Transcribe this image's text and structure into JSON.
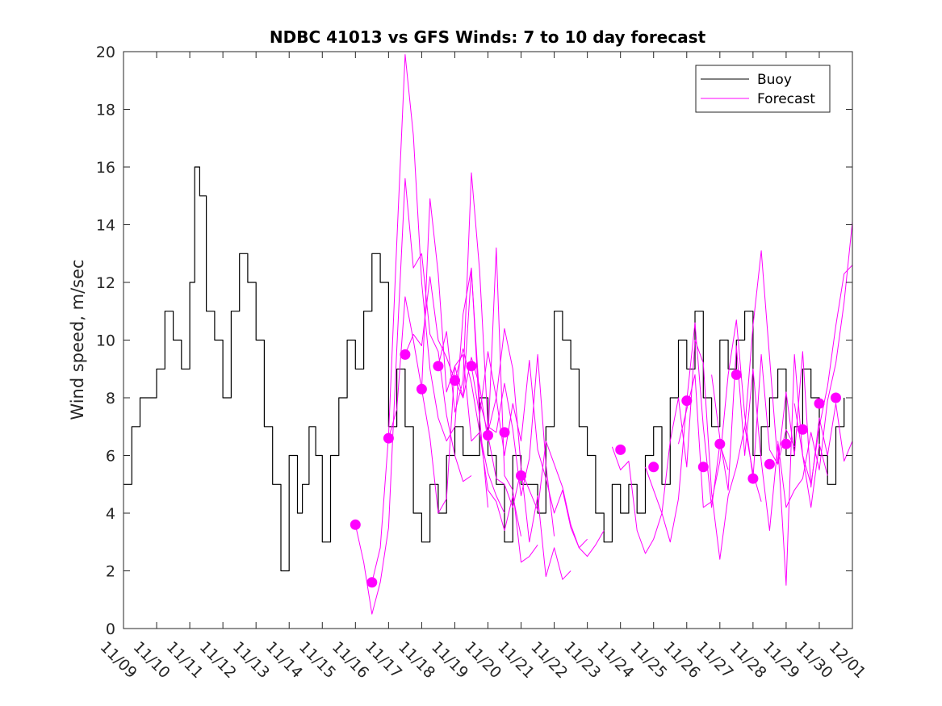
{
  "chart_data": {
    "type": "line",
    "title": "NDBC 41013 vs GFS Winds: 7 to 10 day forecast",
    "xlabel": "",
    "ylabel": "Wind speed, m/sec",
    "x_unit": "days since 11/09 00:00",
    "xlim": [
      0,
      22
    ],
    "ylim": [
      0,
      20
    ],
    "yticks": [
      0,
      2,
      4,
      6,
      8,
      10,
      12,
      14,
      16,
      18,
      20
    ],
    "xtick_labels": [
      "11/09",
      "11/10",
      "11/11",
      "11/12",
      "11/13",
      "11/14",
      "11/15",
      "11/16",
      "11/17",
      "11/18",
      "11/19",
      "11/20",
      "11/21",
      "11/22",
      "11/23",
      "11/24",
      "11/25",
      "11/26",
      "11/27",
      "11/28",
      "11/29",
      "11/30",
      "12/01"
    ],
    "legend": {
      "location": "top-right",
      "entries": [
        "Buoy",
        "Forecast"
      ]
    },
    "colors": {
      "buoy": "#000000",
      "forecast": "#ff00ff"
    },
    "series": [
      {
        "name": "Buoy",
        "x": [
          0.0,
          0.25,
          0.5,
          0.75,
          1.0,
          1.25,
          1.5,
          1.75,
          2.0,
          2.15,
          2.3,
          2.5,
          2.75,
          3.0,
          3.25,
          3.5,
          3.75,
          4.0,
          4.25,
          4.5,
          4.75,
          5.0,
          5.25,
          5.4,
          5.6,
          5.8,
          6.0,
          6.25,
          6.5,
          6.75,
          7.0,
          7.25,
          7.5,
          7.75,
          8.0,
          8.25,
          8.5,
          8.75,
          9.0,
          9.25,
          9.5,
          9.75,
          10.0,
          10.25,
          10.5,
          10.75,
          11.0,
          11.25,
          11.5,
          11.75,
          12.0,
          12.25,
          12.5,
          12.75,
          13.0,
          13.25,
          13.5,
          13.75,
          14.0,
          14.25,
          14.5,
          14.75,
          15.0,
          15.25,
          15.5,
          15.75,
          16.0,
          16.25,
          16.5,
          16.75,
          17.0,
          17.25,
          17.5,
          17.75,
          18.0,
          18.25,
          18.5,
          18.75,
          19.0,
          19.25,
          19.5,
          19.75,
          20.0,
          20.25,
          20.5,
          20.75,
          21.0,
          21.25,
          21.5,
          21.75
        ],
        "values": [
          5,
          7,
          8,
          8,
          9,
          11,
          10,
          9,
          12,
          16,
          15,
          11,
          10,
          8,
          11,
          13,
          12,
          10,
          7,
          5,
          2,
          6,
          4,
          5,
          7,
          6,
          3,
          6,
          8,
          10,
          9,
          11,
          13,
          12,
          7,
          9,
          7,
          4,
          3,
          5,
          4,
          6,
          7,
          6,
          6,
          8,
          6,
          5,
          3,
          6,
          5,
          5,
          4,
          7,
          11,
          10,
          9,
          7,
          6,
          4,
          3,
          5,
          4,
          5,
          4,
          6,
          7,
          5,
          8,
          10,
          9,
          11,
          8,
          7,
          10,
          9,
          10,
          11,
          6,
          7,
          8,
          9,
          6,
          7,
          9,
          8,
          6,
          5,
          7,
          8
        ]
      },
      {
        "name": "Forecast run 1",
        "x": [
          7.0,
          7.25,
          7.5,
          7.75,
          8.0,
          8.25,
          8.5,
          8.75,
          9.0,
          9.25,
          9.5,
          9.75,
          10.0,
          10.25,
          10.5
        ],
        "values": [
          3.6,
          2.3,
          0.5,
          1.6,
          3.5,
          9.7,
          15.6,
          12.5,
          13.0,
          10.2,
          9.6,
          7.4,
          6.0,
          5.1,
          5.3
        ]
      },
      {
        "name": "Forecast run 2",
        "x": [
          7.5,
          7.75,
          8.0,
          8.25,
          8.5,
          8.75,
          9.0,
          9.25,
          9.5,
          9.75,
          10.0,
          10.25,
          10.5,
          10.75,
          11.0
        ],
        "values": [
          1.6,
          2.8,
          6.7,
          13.4,
          19.9,
          17.1,
          12.0,
          9.0,
          7.3,
          6.5,
          7.0,
          10.9,
          12.5,
          7.3,
          4.2
        ]
      },
      {
        "name": "Forecast run 3",
        "x": [
          8.0,
          8.25,
          8.5,
          8.75,
          9.0,
          9.25,
          9.5,
          9.75,
          10.0,
          10.25,
          10.5,
          10.75,
          11.0,
          11.25,
          11.5
        ],
        "values": [
          6.6,
          7.6,
          11.5,
          10.0,
          8.3,
          14.9,
          12.3,
          8.2,
          9.1,
          9.5,
          6.5,
          6.8,
          5.4,
          4.6,
          4.0
        ]
      },
      {
        "name": "Forecast run 4",
        "x": [
          8.5,
          8.75,
          9.0,
          9.25,
          9.5,
          9.75,
          10.0,
          10.25,
          10.5,
          10.75,
          11.0,
          11.25,
          11.5,
          11.75,
          12.0
        ],
        "values": [
          9.5,
          10.2,
          9.8,
          12.2,
          10.0,
          9.4,
          8.6,
          9.7,
          8.5,
          6.8,
          4.8,
          4.4,
          3.4,
          4.6,
          3.2
        ]
      },
      {
        "name": "Forecast run 5",
        "x": [
          9.0,
          9.25,
          9.5,
          9.75,
          10.0,
          10.25,
          10.5,
          10.75,
          11.0,
          11.25,
          11.5,
          11.75,
          12.0,
          12.25,
          12.5
        ],
        "values": [
          8.3,
          6.6,
          4.0,
          4.5,
          9.1,
          8.0,
          9.4,
          8.4,
          6.5,
          13.2,
          5.3,
          4.8,
          2.3,
          2.5,
          2.9
        ]
      },
      {
        "name": "Forecast run 6",
        "x": [
          9.5,
          9.75,
          10.0,
          10.25,
          10.5,
          10.75,
          11.0,
          11.25,
          11.5,
          11.75,
          12.0,
          12.25,
          12.5,
          12.75,
          13.0
        ],
        "values": [
          9.1,
          10.3,
          7.5,
          8.6,
          15.8,
          12.4,
          7.0,
          6.8,
          8.5,
          6.9,
          4.6,
          5.9,
          9.5,
          5.7,
          3.2
        ]
      },
      {
        "name": "Forecast run 7",
        "x": [
          10.0,
          10.25,
          10.5,
          10.75,
          11.0,
          11.25,
          11.5,
          11.75,
          12.0,
          12.25,
          12.5,
          12.75,
          13.0,
          13.25,
          13.5
        ],
        "values": [
          8.6,
          8.0,
          12.4,
          7.9,
          6.8,
          8.0,
          10.4,
          9.0,
          5.6,
          3.0,
          4.6,
          1.8,
          2.8,
          1.7,
          2.0
        ]
      },
      {
        "name": "Forecast run 8",
        "x": [
          10.5,
          10.75,
          11.0,
          11.25,
          11.5,
          11.75,
          12.0,
          12.25,
          12.5,
          12.75,
          13.0,
          13.25,
          13.5,
          13.75,
          14.0
        ],
        "values": [
          9.1,
          7.4,
          9.6,
          8.0,
          6.0,
          7.8,
          6.5,
          9.3,
          6.2,
          5.2,
          4.0,
          4.8,
          3.5,
          2.8,
          3.1
        ]
      },
      {
        "name": "Forecast run 9",
        "x": [
          11.0,
          11.25,
          11.5,
          11.75,
          12.0,
          12.25,
          12.5,
          12.75,
          13.0,
          13.25,
          13.5,
          13.75,
          14.0,
          14.25,
          14.5
        ],
        "values": [
          6.7,
          5.2,
          5.0,
          4.2,
          5.5,
          4.8,
          4.1,
          6.5,
          5.7,
          4.9,
          3.6,
          2.8,
          2.5,
          2.9,
          3.4
        ]
      },
      {
        "name": "Forecast run 10",
        "x": [
          14.75,
          15.0,
          15.25,
          15.5,
          15.75,
          16.0,
          16.25,
          16.5,
          16.75,
          17.0,
          17.25,
          17.5,
          17.75,
          18.0,
          18.25
        ],
        "values": [
          6.3,
          5.5,
          5.8,
          3.4,
          2.6,
          3.1,
          4.0,
          3.0,
          4.5,
          7.9,
          10.6,
          7.0,
          4.2,
          6.4,
          5.5
        ]
      },
      {
        "name": "Forecast run 11",
        "x": [
          15.75,
          16.0,
          16.25,
          16.5,
          16.75,
          17.0,
          17.25,
          17.5,
          17.75,
          18.0,
          18.25,
          18.5,
          18.75,
          19.0,
          19.25
        ],
        "values": [
          5.6,
          4.8,
          4.0,
          6.5,
          8.0,
          5.6,
          10.0,
          9.2,
          4.7,
          2.4,
          4.6,
          5.6,
          7.0,
          5.4,
          4.4
        ]
      },
      {
        "name": "Forecast run 12",
        "x": [
          16.75,
          17.0,
          17.25,
          17.5,
          17.75,
          18.0,
          18.25,
          18.5,
          18.75,
          19.0,
          19.25,
          19.5,
          19.75,
          20.0,
          20.25
        ],
        "values": [
          6.4,
          7.6,
          8.8,
          4.2,
          4.4,
          5.8,
          8.8,
          10.7,
          7.4,
          5.2,
          9.5,
          6.2,
          5.7,
          6.9,
          6.3
        ]
      },
      {
        "name": "Forecast run 13",
        "x": [
          17.75,
          18.0,
          18.25,
          18.5,
          18.75,
          19.0,
          19.25,
          19.5,
          19.75,
          20.0,
          20.25,
          20.5,
          20.75,
          21.0,
          21.25
        ],
        "values": [
          8.8,
          6.6,
          4.8,
          9.8,
          6.0,
          9.0,
          5.8,
          3.4,
          6.4,
          1.5,
          9.5,
          6.0,
          4.2,
          6.4,
          5.3
        ]
      },
      {
        "name": "Forecast run 14",
        "x": [
          18.75,
          19.0,
          19.25,
          19.5,
          19.75,
          20.0,
          20.25,
          20.5,
          20.75,
          21.0,
          21.25,
          21.5,
          21.75,
          22.0
        ],
        "values": [
          6.9,
          10.5,
          13.1,
          9.4,
          5.7,
          8.2,
          6.0,
          9.6,
          4.9,
          7.3,
          6.0,
          7.8,
          5.8,
          6.5
        ]
      },
      {
        "name": "Forecast run 15",
        "x": [
          19.75,
          20.0,
          20.25,
          20.5,
          20.75,
          21.0,
          21.25,
          21.5,
          21.75,
          22.0
        ],
        "values": [
          6.5,
          4.2,
          4.8,
          5.2,
          6.8,
          5.5,
          7.9,
          9.2,
          11.3,
          14.1
        ]
      },
      {
        "name": "Forecast run 16",
        "x": [
          20.25,
          20.5,
          20.75,
          21.0,
          21.25,
          21.5,
          21.75,
          22.0
        ],
        "values": [
          7.8,
          6.0,
          5.0,
          7.0,
          8.4,
          10.5,
          12.3,
          12.6
        ]
      }
    ],
    "markers": {
      "name": "Forecast",
      "x": [
        7.0,
        7.5,
        8.0,
        8.5,
        9.0,
        9.5,
        10.0,
        10.5,
        11.0,
        11.5,
        12.0,
        15.0,
        16.0,
        17.0,
        17.5,
        18.0,
        18.5,
        19.0,
        19.5,
        20.0,
        20.5,
        21.0,
        21.5
      ],
      "values": [
        3.6,
        1.6,
        6.6,
        9.5,
        8.3,
        9.1,
        8.6,
        9.1,
        6.7,
        6.8,
        5.3,
        6.2,
        5.6,
        7.9,
        5.6,
        6.4,
        8.8,
        5.2,
        5.7,
        6.4,
        6.9,
        7.8,
        8.0
      ]
    }
  }
}
